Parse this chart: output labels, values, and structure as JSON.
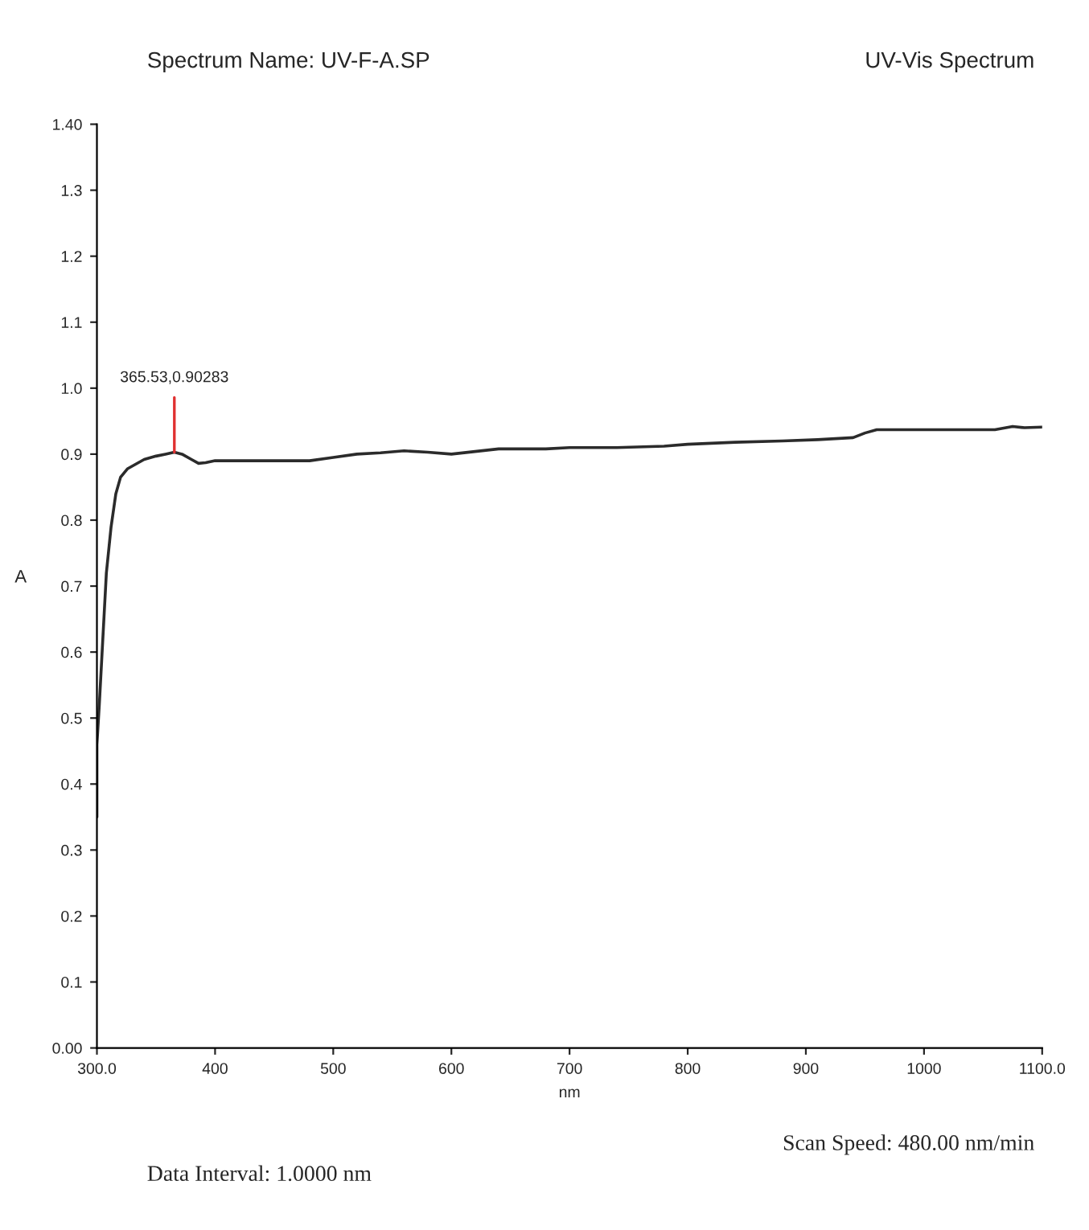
{
  "chart_data": {
    "type": "line",
    "title": "Spectrum Name: UV-F-A.SP",
    "subtitle": "UV-Vis Spectrum",
    "xlabel": "nm",
    "ylabel": "A",
    "x": [
      300,
      300,
      302,
      305,
      308,
      312,
      316,
      320,
      326,
      333,
      340,
      350,
      358,
      365.53,
      372,
      380,
      386,
      392,
      400,
      440,
      480,
      500,
      520,
      540,
      560,
      580,
      600,
      620,
      640,
      680,
      700,
      740,
      780,
      800,
      840,
      880,
      910,
      940,
      950,
      960,
      1000,
      1060,
      1075,
      1085,
      1100
    ],
    "series": [
      {
        "color": "#2b2b2b",
        "values": [
          0.35,
          0.46,
          0.52,
          0.62,
          0.72,
          0.79,
          0.84,
          0.865,
          0.878,
          0.885,
          0.892,
          0.897,
          0.9,
          0.90283,
          0.9,
          0.892,
          0.886,
          0.887,
          0.89,
          0.89,
          0.89,
          0.895,
          0.9,
          0.902,
          0.905,
          0.903,
          0.9,
          0.904,
          0.908,
          0.908,
          0.91,
          0.91,
          0.912,
          0.915,
          0.918,
          0.92,
          0.922,
          0.925,
          0.932,
          0.937,
          0.937,
          0.937,
          0.942,
          0.94,
          0.941
        ]
      }
    ],
    "xlim": [
      300,
      1100
    ],
    "ylim": [
      0,
      1.4
    ],
    "xticks": [
      {
        "value": 300,
        "label": "300.0"
      },
      400,
      500,
      600,
      700,
      800,
      900,
      1000,
      {
        "value": 1100,
        "label": "1100.0"
      }
    ],
    "yticks": [
      {
        "value": 0,
        "label": "0.00"
      },
      0.1,
      0.2,
      0.3,
      0.4,
      0.5,
      0.6,
      0.7,
      0.8,
      0.9,
      {
        "value": 1.0,
        "label": "1.0"
      },
      1.1,
      1.2,
      1.3,
      {
        "value": 1.4,
        "label": "1.40"
      }
    ],
    "annotations": [
      {
        "text": "365.53,0.90283",
        "x": 365.53,
        "y": 0.90283
      },
      "Data Interval: 1.0000 nm",
      "Scan Speed: 480.00 nm/min"
    ],
    "grid": false,
    "legend": false,
    "marker": "none",
    "line_style": "solid"
  }
}
